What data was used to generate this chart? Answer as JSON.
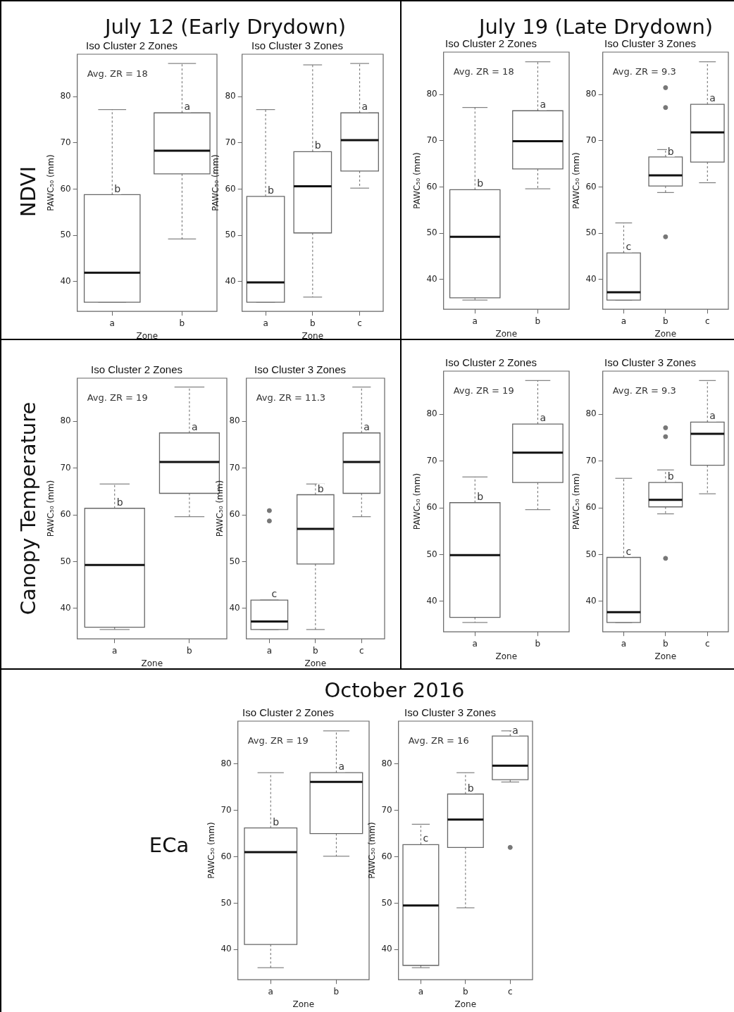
{
  "chart_data": [
    {
      "type": "other",
      "title": "July 12 (Early Drydown)"
    },
    {
      "type": "other",
      "title": "July 19 (Late Drydown)"
    },
    {
      "type": "other",
      "title": "NDVI"
    },
    {
      "type": "box",
      "title": "Iso Cluster 2 Zones",
      "xlabel": "Zone",
      "ylabel": "PAWC₅₀ (mm)",
      "categories": [
        "a",
        "b"
      ],
      "ylim": [
        33.5,
        89.2
      ],
      "yticks": [
        40,
        50,
        60,
        70,
        80
      ],
      "boxes": [
        {
          "low": 35.5,
          "q1": 35.5,
          "median": 41.9,
          "q3": 58.8,
          "high": 77.2
        },
        {
          "low": 49.2,
          "q1": 63.3,
          "median": 68.3,
          "q3": 76.5,
          "high": 87.2
        }
      ],
      "annotations": [
        "Avg. ZR = 18",
        {
          "text": "b",
          "x": "a",
          "y": 59.3
        },
        {
          "text": "a",
          "x": "b",
          "y": 77.1
        }
      ]
    },
    {
      "type": "box",
      "title": "Iso Cluster 3 Zones",
      "xlabel": "Zone",
      "ylabel": "PAWC₅₀ (mm)",
      "categories": [
        "a",
        "b",
        "c"
      ],
      "ylim": [
        33.5,
        89.2
      ],
      "yticks": [
        40,
        50,
        60,
        70,
        80
      ],
      "boxes": [
        {
          "low": 35.5,
          "q1": 35.5,
          "median": 39.8,
          "q3": 58.4,
          "high": 77.2
        },
        {
          "low": 36.6,
          "q1": 50.5,
          "median": 60.6,
          "q3": 68.1,
          "high": 86.9
        },
        {
          "low": 60.2,
          "q1": 63.9,
          "median": 70.6,
          "q3": 76.5,
          "high": 87.2
        }
      ],
      "annotations": [
        {
          "text": "b",
          "x": "a",
          "y": 59.0
        },
        {
          "text": "b",
          "x": "b",
          "y": 68.7
        },
        {
          "text": "a",
          "x": "c",
          "y": 77.1
        }
      ]
    },
    {
      "type": "box",
      "title": "Iso Cluster 2 Zones",
      "xlabel": "Zone",
      "ylabel": "PAWC₅₀ (mm)",
      "categories": [
        "a",
        "b"
      ],
      "ylim": [
        33.5,
        89.2
      ],
      "yticks": [
        40,
        50,
        60,
        70,
        80
      ],
      "boxes": [
        {
          "low": 35.5,
          "q1": 36.0,
          "median": 49.2,
          "q3": 59.4,
          "high": 77.2
        },
        {
          "low": 59.6,
          "q1": 63.9,
          "median": 69.9,
          "q3": 76.5,
          "high": 87.1
        }
      ],
      "annotations": [
        "Avg. ZR = 18",
        {
          "text": "b",
          "x": "a",
          "y": 60.0
        },
        {
          "text": "a",
          "x": "b",
          "y": 77.1
        }
      ]
    },
    {
      "type": "box",
      "title": "Iso Cluster 3 Zones",
      "xlabel": "Zone",
      "ylabel": "PAWC₅₀ (mm)",
      "categories": [
        "a",
        "b",
        "c"
      ],
      "ylim": [
        33.5,
        89.2
      ],
      "yticks": [
        40,
        50,
        60,
        70,
        80
      ],
      "boxes": [
        {
          "low": 35.5,
          "q1": 35.5,
          "median": 37.2,
          "q3": 45.7,
          "high": 52.2
        },
        {
          "low": 58.8,
          "q1": 60.2,
          "median": 62.5,
          "q3": 66.5,
          "high": 68.1,
          "outliers": [
            81.5,
            77.2,
            49.2
          ]
        },
        {
          "low": 60.9,
          "q1": 65.4,
          "median": 71.8,
          "q3": 77.9,
          "high": 87.1
        }
      ],
      "annotations": [
        "Avg. ZR = 9.3",
        {
          "text": "c",
          "x": "a",
          "y": 46.3
        },
        {
          "text": "b",
          "x": "b",
          "y": 67.0
        },
        {
          "text": "a",
          "x": "c",
          "y": 78.5
        }
      ]
    },
    {
      "type": "other",
      "title": "Canopy Temperature"
    },
    {
      "type": "box",
      "title": "Iso Cluster 2 Zones",
      "xlabel": "Zone",
      "ylabel": "PAWC₅₀ (mm)",
      "categories": [
        "a",
        "b"
      ],
      "ylim": [
        33.5,
        89.2
      ],
      "yticks": [
        40,
        50,
        60,
        70,
        80
      ],
      "boxes": [
        {
          "low": 35.5,
          "q1": 36.0,
          "median": 49.3,
          "q3": 61.4,
          "high": 66.6
        },
        {
          "low": 59.6,
          "q1": 64.6,
          "median": 71.3,
          "q3": 77.5,
          "high": 87.3
        }
      ],
      "annotations": [
        "Avg. ZR = 19",
        {
          "text": "b",
          "x": "a",
          "y": 62.0
        },
        {
          "text": "a",
          "x": "b",
          "y": 78.1
        }
      ]
    },
    {
      "type": "box",
      "title": "Iso Cluster 3 Zones",
      "xlabel": "Zone",
      "ylabel": "PAWC₅₀ (mm)",
      "categories": [
        "a",
        "b",
        "c"
      ],
      "ylim": [
        33.5,
        89.2
      ],
      "yticks": [
        40,
        50,
        60,
        70,
        80
      ],
      "boxes": [
        {
          "low": 35.5,
          "q1": 35.5,
          "median": 37.2,
          "q3": 41.8,
          "high": 41.8,
          "outliers": [
            60.9,
            58.7
          ]
        },
        {
          "low": 35.5,
          "q1": 49.5,
          "median": 57.0,
          "q3": 64.3,
          "high": 66.6
        },
        {
          "low": 59.6,
          "q1": 64.6,
          "median": 71.3,
          "q3": 77.5,
          "high": 87.3
        }
      ],
      "annotations": [
        "Avg. ZR = 11.3",
        {
          "text": "c",
          "x": "a",
          "y": 42.4
        },
        {
          "text": "b",
          "x": "b",
          "y": 64.9
        },
        {
          "text": "a",
          "x": "c",
          "y": 78.1
        }
      ]
    },
    {
      "type": "box",
      "title": "Iso Cluster 2 Zones",
      "xlabel": "Zone",
      "ylabel": "PAWC₅₀ (mm)",
      "categories": [
        "a",
        "b"
      ],
      "ylim": [
        33.5,
        89.2
      ],
      "yticks": [
        40,
        50,
        60,
        70,
        80
      ],
      "boxes": [
        {
          "low": 35.5,
          "q1": 36.6,
          "median": 49.9,
          "q3": 61.1,
          "high": 66.6
        },
        {
          "low": 59.6,
          "q1": 65.4,
          "median": 71.8,
          "q3": 77.9,
          "high": 87.2
        }
      ],
      "annotations": [
        "Avg. ZR = 19",
        {
          "text": "b",
          "x": "a",
          "y": 61.7
        },
        {
          "text": "a",
          "x": "b",
          "y": 78.5
        }
      ]
    },
    {
      "type": "box",
      "title": "Iso Cluster 3 Zones",
      "xlabel": "Zone",
      "ylabel": "PAWC₅₀ (mm)",
      "categories": [
        "a",
        "b",
        "c"
      ],
      "ylim": [
        33.5,
        89.2
      ],
      "yticks": [
        40,
        50,
        60,
        70,
        80
      ],
      "boxes": [
        {
          "low": 35.5,
          "q1": 35.5,
          "median": 37.7,
          "q3": 49.4,
          "high": 66.3
        },
        {
          "low": 58.7,
          "q1": 60.2,
          "median": 61.7,
          "q3": 65.4,
          "high": 68.1,
          "outliers": [
            77.1,
            75.2,
            49.2
          ]
        },
        {
          "low": 63.0,
          "q1": 69.1,
          "median": 75.8,
          "q3": 78.3,
          "high": 87.2
        }
      ],
      "annotations": [
        "Avg. ZR = 9.3",
        {
          "text": "c",
          "x": "a",
          "y": 50.0
        },
        {
          "text": "b",
          "x": "b",
          "y": 66.0
        },
        {
          "text": "a",
          "x": "c",
          "y": 78.9
        }
      ]
    },
    {
      "type": "other",
      "title": "October 2016"
    },
    {
      "type": "other",
      "title": "ECa"
    },
    {
      "type": "box",
      "title": "Iso Cluster 2 Zones",
      "xlabel": "Zone",
      "ylabel": "PAWC₅₀ (mm)",
      "categories": [
        "a",
        "b"
      ],
      "ylim": [
        33.5,
        89.2
      ],
      "yticks": [
        40,
        50,
        60,
        70,
        80
      ],
      "boxes": [
        {
          "low": 36.1,
          "q1": 41.1,
          "median": 61.0,
          "q3": 66.2,
          "high": 78.1
        },
        {
          "low": 60.1,
          "q1": 65.0,
          "median": 76.1,
          "q3": 78.1,
          "high": 87.1
        }
      ],
      "annotations": [
        "Avg. ZR = 19",
        {
          "text": "b",
          "x": "a",
          "y": 66.8
        },
        {
          "text": "a",
          "x": "b",
          "y": 78.7
        }
      ]
    },
    {
      "type": "box",
      "title": "Iso Cluster 3 Zones",
      "xlabel": "Zone",
      "ylabel": "PAWC₅₀ (mm)",
      "categories": [
        "a",
        "b",
        "c"
      ],
      "ylim": [
        33.5,
        89.2
      ],
      "yticks": [
        40,
        50,
        60,
        70,
        80
      ],
      "boxes": [
        {
          "low": 36.1,
          "q1": 36.6,
          "median": 49.5,
          "q3": 62.6,
          "high": 67.0
        },
        {
          "low": 49.0,
          "q1": 62.0,
          "median": 68.0,
          "q3": 73.5,
          "high": 78.1
        },
        {
          "low": 76.1,
          "q1": 76.6,
          "median": 79.6,
          "q3": 86.0,
          "high": 87.1,
          "outliers": [
            62.0
          ]
        }
      ],
      "annotations": [
        "Avg. ZR = 16",
        {
          "text": "c",
          "x": "a",
          "y": 63.2
        },
        {
          "text": "b",
          "x": "b",
          "y": 74.1
        },
        {
          "text": "a",
          "x": "c",
          "y": 86.5
        }
      ]
    }
  ]
}
